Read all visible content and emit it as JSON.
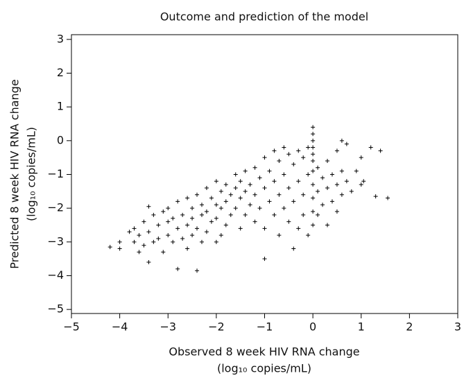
{
  "chart_data": {
    "type": "scatter",
    "title": "Outcome and prediction of the model",
    "xlabel": [
      "Observed 8 week HIV RNA change",
      "(log₁₀ copies/mL)"
    ],
    "ylabel": [
      "Predicted 8 week HIV RNA change",
      "(log₁₀ copies/mL)"
    ],
    "color": "#000000",
    "marker": "+",
    "xlim": [
      -5,
      3
    ],
    "ylim": [
      -5.12,
      3.14
    ],
    "xticks": [
      {
        "value": -5,
        "label": "−5"
      },
      {
        "value": -4,
        "label": "−4"
      },
      {
        "value": -3,
        "label": "−3"
      },
      {
        "value": -2,
        "label": "−2"
      },
      {
        "value": -1,
        "label": "−1"
      },
      0,
      1,
      2,
      3
    ],
    "yticks": [
      {
        "value": -5,
        "label": "−5"
      },
      {
        "value": -4,
        "label": "−4"
      },
      {
        "value": -3,
        "label": "−3"
      },
      {
        "value": -2,
        "label": "−2"
      },
      {
        "value": -1,
        "label": "−1"
      },
      0,
      1,
      2,
      3
    ],
    "x": [
      -4.2,
      -4.0,
      -4.0,
      -3.8,
      -3.7,
      -3.7,
      -3.6,
      -3.6,
      -3.5,
      -3.5,
      -3.4,
      -3.4,
      -3.4,
      -3.3,
      -3.3,
      -3.2,
      -3.2,
      -3.1,
      -3.1,
      -3.0,
      -3.0,
      -3.0,
      -2.9,
      -2.9,
      -2.8,
      -2.8,
      -2.8,
      -2.7,
      -2.7,
      -2.6,
      -2.6,
      -2.6,
      -2.5,
      -2.5,
      -2.5,
      -2.4,
      -2.4,
      -2.4,
      -2.3,
      -2.3,
      -2.3,
      -2.2,
      -2.2,
      -2.2,
      -2.1,
      -2.1,
      -2.0,
      -2.0,
      -2.0,
      -2.0,
      -1.9,
      -1.9,
      -1.9,
      -1.8,
      -1.8,
      -1.8,
      -1.7,
      -1.7,
      -1.6,
      -1.6,
      -1.6,
      -1.5,
      -1.5,
      -1.5,
      -1.4,
      -1.4,
      -1.4,
      -1.3,
      -1.3,
      -1.2,
      -1.2,
      -1.2,
      -1.1,
      -1.1,
      -1.0,
      -1.0,
      -1.0,
      -1.0,
      -0.9,
      -0.9,
      -0.8,
      -0.8,
      -0.8,
      -0.7,
      -0.7,
      -0.7,
      -0.6,
      -0.6,
      -0.6,
      -0.5,
      -0.5,
      -0.5,
      -0.4,
      -0.4,
      -0.4,
      -0.3,
      -0.3,
      -0.3,
      -0.2,
      -0.2,
      -0.2,
      -0.1,
      -0.1,
      -0.1,
      0,
      0,
      0,
      0,
      0,
      0,
      0,
      0,
      0,
      0,
      0,
      0.1,
      0.1,
      0.1,
      0.2,
      0.2,
      0.3,
      0.3,
      0.3,
      0.4,
      0.4,
      0.5,
      0.5,
      0.5,
      0.6,
      0.6,
      0.6,
      0.7,
      0.7,
      0.8,
      0.9,
      1.0,
      1.0,
      1.05,
      1.3,
      1.4,
      1.55,
      1.2
    ],
    "values": [
      -3.15,
      -3.0,
      -3.2,
      -2.7,
      -2.6,
      -3.0,
      -2.8,
      -3.3,
      -2.4,
      -3.1,
      -1.95,
      -2.7,
      -3.6,
      -2.2,
      -3.0,
      -2.5,
      -2.9,
      -2.1,
      -3.3,
      -2.0,
      -2.4,
      -2.8,
      -2.3,
      -3.0,
      -1.8,
      -2.6,
      -3.8,
      -2.2,
      -2.9,
      -1.7,
      -2.5,
      -3.2,
      -2.0,
      -2.3,
      -2.8,
      -1.6,
      -2.6,
      -3.85,
      -1.9,
      -2.2,
      -3.0,
      -1.4,
      -2.1,
      -2.7,
      -1.7,
      -2.4,
      -1.2,
      -1.9,
      -2.3,
      -3.0,
      -1.5,
      -2.0,
      -2.8,
      -1.3,
      -1.8,
      -2.5,
      -1.6,
      -2.2,
      -1.0,
      -1.4,
      -2.0,
      -1.2,
      -1.7,
      -2.6,
      -0.9,
      -1.5,
      -2.2,
      -1.3,
      -1.9,
      -0.8,
      -1.6,
      -2.4,
      -1.1,
      -2.0,
      -0.5,
      -1.4,
      -2.6,
      -3.5,
      -0.9,
      -1.8,
      -0.3,
      -1.2,
      -2.2,
      -0.6,
      -1.6,
      -2.8,
      -0.2,
      -1.0,
      -2.0,
      -0.4,
      -1.4,
      -2.4,
      -0.7,
      -1.8,
      -3.2,
      -0.3,
      -1.2,
      -2.6,
      -0.5,
      -1.6,
      -2.2,
      -0.2,
      -1.0,
      -2.8,
      0.4,
      0.2,
      0.0,
      -0.2,
      -0.4,
      -0.6,
      -0.9,
      -1.3,
      -1.7,
      -2.1,
      -2.5,
      -0.8,
      -1.5,
      -2.2,
      -1.1,
      -1.9,
      -0.6,
      -1.4,
      -2.5,
      -1.0,
      -1.8,
      -0.3,
      -1.3,
      -2.1,
      0.0,
      -0.9,
      -1.6,
      -0.1,
      -1.2,
      -1.5,
      -0.9,
      -1.3,
      -0.5,
      -1.2,
      -1.65,
      -0.3,
      -1.7,
      -0.2
    ]
  }
}
